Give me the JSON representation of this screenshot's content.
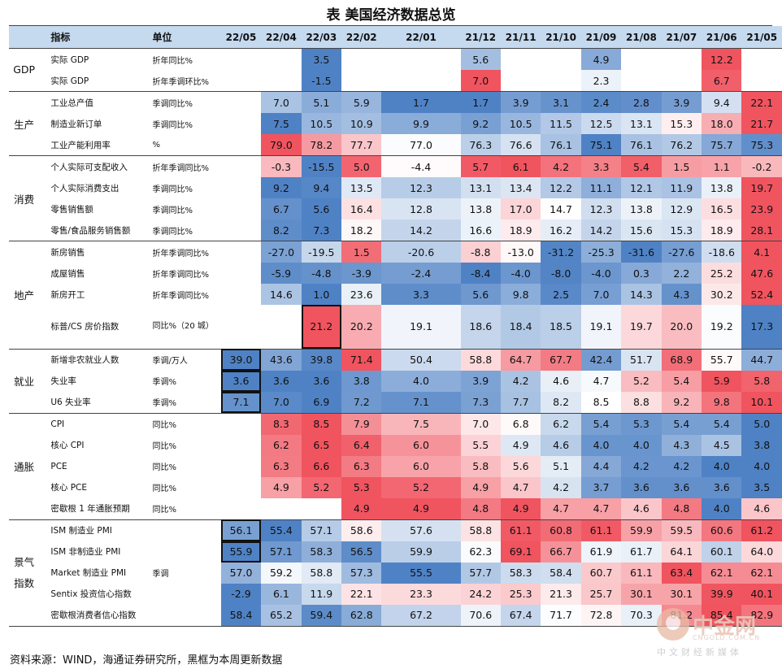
{
  "title": "表  美国经济数据总览",
  "headers": [
    "指标",
    "单位",
    "22/05",
    "22/04",
    "22/03",
    "22/02",
    "22/01",
    "21/12",
    "21/11",
    "21/10",
    "21/09",
    "21/08",
    "21/07",
    "21/06",
    "21/05"
  ],
  "groups": [
    {
      "name": "GDP",
      "rows": [
        {
          "ind": "实际 GDP",
          "unit": "折年同比%",
          "vals": [
            "",
            "",
            "3.5",
            "",
            "",
            "5.6",
            "",
            "",
            "4.9",
            "",
            "",
            "12.2",
            ""
          ]
        },
        {
          "ind": "实际 GDP",
          "unit": "折年季调环比%",
          "vals": [
            "",
            "",
            "-1.5",
            "",
            "",
            "7.0",
            "",
            "",
            "2.3",
            "",
            "",
            "6.7",
            ""
          ]
        }
      ]
    },
    {
      "name": "生产",
      "rows": [
        {
          "ind": "工业总产值",
          "unit": "季调同比%",
          "vals": [
            "",
            "7.0",
            "5.1",
            "5.9",
            "1.7",
            "1.7",
            "3.9",
            "3.1",
            "2.4",
            "2.8",
            "3.9",
            "9.4",
            "22.1"
          ]
        },
        {
          "ind": "制造业新订单",
          "unit": "季调同比%",
          "vals": [
            "",
            "7.5",
            "10.5",
            "10.9",
            "9.9",
            "9.2",
            "10.5",
            "11.5",
            "12.5",
            "13.1",
            "15.3",
            "18.0",
            "21.7"
          ]
        },
        {
          "ind": "工业产能利用率",
          "unit": "%",
          "vals": [
            "",
            "79.0",
            "78.2",
            "77.7",
            "77.0",
            "76.3",
            "76.6",
            "76.1",
            "75.1",
            "76.1",
            "76.2",
            "75.7",
            "75.3"
          ]
        }
      ]
    },
    {
      "name": "消费",
      "rows": [
        {
          "ind": "个人实际可支配收入",
          "unit": "折年季调同比%",
          "vals": [
            "",
            "-0.3",
            "-15.5",
            "5.0",
            "-4.4",
            "5.7",
            "6.1",
            "4.2",
            "3.3",
            "5.4",
            "1.5",
            "1.1",
            "-0.2"
          ]
        },
        {
          "ind": "个人实际消费支出",
          "unit": "季调同比%",
          "vals": [
            "",
            "9.2",
            "9.4",
            "13.5",
            "12.3",
            "13.1",
            "13.4",
            "12.2",
            "11.1",
            "12.1",
            "11.9",
            "13.8",
            "19.7"
          ]
        },
        {
          "ind": "零售销售额",
          "unit": "季调同比%",
          "vals": [
            "",
            "6.7",
            "5.6",
            "16.4",
            "12.8",
            "13.8",
            "17.0",
            "14.7",
            "12.3",
            "13.8",
            "12.9",
            "16.5",
            "23.9"
          ]
        },
        {
          "ind": "零售/食品服务销售额",
          "unit": "季调同比%",
          "vals": [
            "",
            "8.2",
            "7.3",
            "18.2",
            "14.2",
            "16.6",
            "18.9",
            "16.2",
            "14.2",
            "15.6",
            "15.3",
            "18.9",
            "28.1"
          ]
        }
      ]
    },
    {
      "name": "地产",
      "rows": [
        {
          "ind": "新房销售",
          "unit": "折年季调同比%",
          "vals": [
            "",
            "-27.0",
            "-19.5",
            "1.5",
            "-20.6",
            "-8.8",
            "-13.0",
            "-31.2",
            "-25.3",
            "-31.6",
            "-27.6",
            "-18.6",
            "4.1"
          ]
        },
        {
          "ind": "成屋销售",
          "unit": "折年季调同比%",
          "vals": [
            "",
            "-5.9",
            "-4.8",
            "-3.9",
            "-2.4",
            "-8.4",
            "-4.0",
            "-8.0",
            "-4.0",
            "0.3",
            "2.2",
            "25.2",
            "47.6"
          ]
        },
        {
          "ind": "新房开工",
          "unit": "折年季调同比%",
          "vals": [
            "",
            "14.6",
            "1.0",
            "23.6",
            "3.3",
            "5.6",
            "9.8",
            "2.5",
            "7.0",
            "14.3",
            "4.3",
            "30.2",
            "52.4"
          ]
        },
        {
          "ind": "标普/CS 房价指数",
          "unit": "同比%（20 城）",
          "tall": true,
          "vals": [
            "",
            "",
            "21.2",
            "20.2",
            "19.1",
            "18.6",
            "18.4",
            "18.5",
            "19.1",
            "19.7",
            "20.0",
            "19.2",
            "17.3"
          ]
        }
      ]
    },
    {
      "name": "就业",
      "rows": [
        {
          "ind": "新增非农就业人数",
          "unit": "季调/万人",
          "vals": [
            "39.0",
            "43.6",
            "39.8",
            "71.4",
            "50.4",
            "58.8",
            "64.7",
            "67.7",
            "42.4",
            "51.7",
            "68.9",
            "55.7",
            "44.7"
          ]
        },
        {
          "ind": "失业率",
          "unit": "季调%",
          "vals": [
            "3.6",
            "3.6",
            "3.6",
            "3.8",
            "4.0",
            "3.9",
            "4.2",
            "4.6",
            "4.7",
            "5.2",
            "5.4",
            "5.9",
            "5.8"
          ]
        },
        {
          "ind": "U6 失业率",
          "unit": "季调%",
          "vals": [
            "7.1",
            "7.0",
            "6.9",
            "7.2",
            "7.1",
            "7.3",
            "7.7",
            "8.2",
            "8.5",
            "8.8",
            "9.2",
            "9.8",
            "10.1"
          ]
        }
      ]
    },
    {
      "name": "通胀",
      "rows": [
        {
          "ind": "CPI",
          "unit": "同比%",
          "vals": [
            "",
            "8.3",
            "8.5",
            "7.9",
            "7.5",
            "7.0",
            "6.8",
            "6.2",
            "5.4",
            "5.3",
            "5.4",
            "5.4",
            "5.0"
          ]
        },
        {
          "ind": "核心 CPI",
          "unit": "同比%",
          "vals": [
            "",
            "6.2",
            "6.5",
            "6.4",
            "6.0",
            "5.5",
            "4.9",
            "4.6",
            "4.0",
            "4.0",
            "4.3",
            "4.5",
            "3.8"
          ]
        },
        {
          "ind": "PCE",
          "unit": "同比%",
          "vals": [
            "",
            "6.3",
            "6.6",
            "6.3",
            "6.0",
            "5.8",
            "5.6",
            "5.1",
            "4.4",
            "4.2",
            "4.2",
            "4.0",
            "4.0"
          ]
        },
        {
          "ind": "核心 PCE",
          "unit": "同比%",
          "vals": [
            "",
            "4.9",
            "5.2",
            "5.3",
            "5.2",
            "4.9",
            "4.7",
            "4.2",
            "3.7",
            "3.6",
            "3.6",
            "3.6",
            "3.5"
          ]
        },
        {
          "ind": "密歇根 1 年通胀预期",
          "unit": "同比%",
          "vals": [
            "",
            "",
            "",
            "4.9",
            "4.9",
            "4.8",
            "4.9",
            "4.7",
            "4.7",
            "4.6",
            "4.8",
            "4.0",
            "4.6"
          ]
        }
      ]
    },
    {
      "name": "景气指数",
      "rows": [
        {
          "ind": "ISM 制造业 PMI",
          "unit": "",
          "vals": [
            "56.1",
            "55.4",
            "57.1",
            "58.6",
            "57.6",
            "58.8",
            "61.1",
            "60.8",
            "61.1",
            "59.9",
            "59.5",
            "60.6",
            "61.2"
          ]
        },
        {
          "ind": "ISM 非制造业 PMI",
          "unit": "",
          "vals": [
            "55.9",
            "57.1",
            "58.3",
            "56.5",
            "59.9",
            "62.3",
            "69.1",
            "66.7",
            "61.9",
            "61.7",
            "64.1",
            "60.1",
            "64.0"
          ]
        },
        {
          "ind": "Market 制造业 PMI",
          "unit": "季调",
          "vals": [
            "57.0",
            "59.2",
            "58.8",
            "57.3",
            "55.5",
            "57.7",
            "58.3",
            "58.4",
            "60.7",
            "61.1",
            "63.4",
            "62.1",
            "62.1"
          ]
        },
        {
          "ind": "Sentix 投资信心指数",
          "unit": "",
          "vals": [
            "-2.9",
            "6.1",
            "11.9",
            "22.1",
            "23.3",
            "24.2",
            "25.3",
            "21.3",
            "25.7",
            "30.1",
            "30.1",
            "39.9",
            "40.1"
          ]
        },
        {
          "ind": "密歇根消费者信心指数",
          "unit": "",
          "vals": [
            "58.4",
            "65.2",
            "59.4",
            "62.8",
            "67.2",
            "70.6",
            "67.4",
            "71.7",
            "72.8",
            "70.3",
            "81.2",
            "85.4",
            "82.9"
          ]
        }
      ]
    }
  ],
  "source": "资料来源：WIND，海通证券研究所，黑框为本周更新数据",
  "watermark": {
    "name": "中金网",
    "url": "CNGOLD.COM.CN",
    "sub": "中文财经新媒体"
  },
  "colors": {
    "header": "#c5d9ef",
    "red": "#f0545f",
    "blue": "#4f82c5",
    "neutral": "#ffffff"
  }
}
